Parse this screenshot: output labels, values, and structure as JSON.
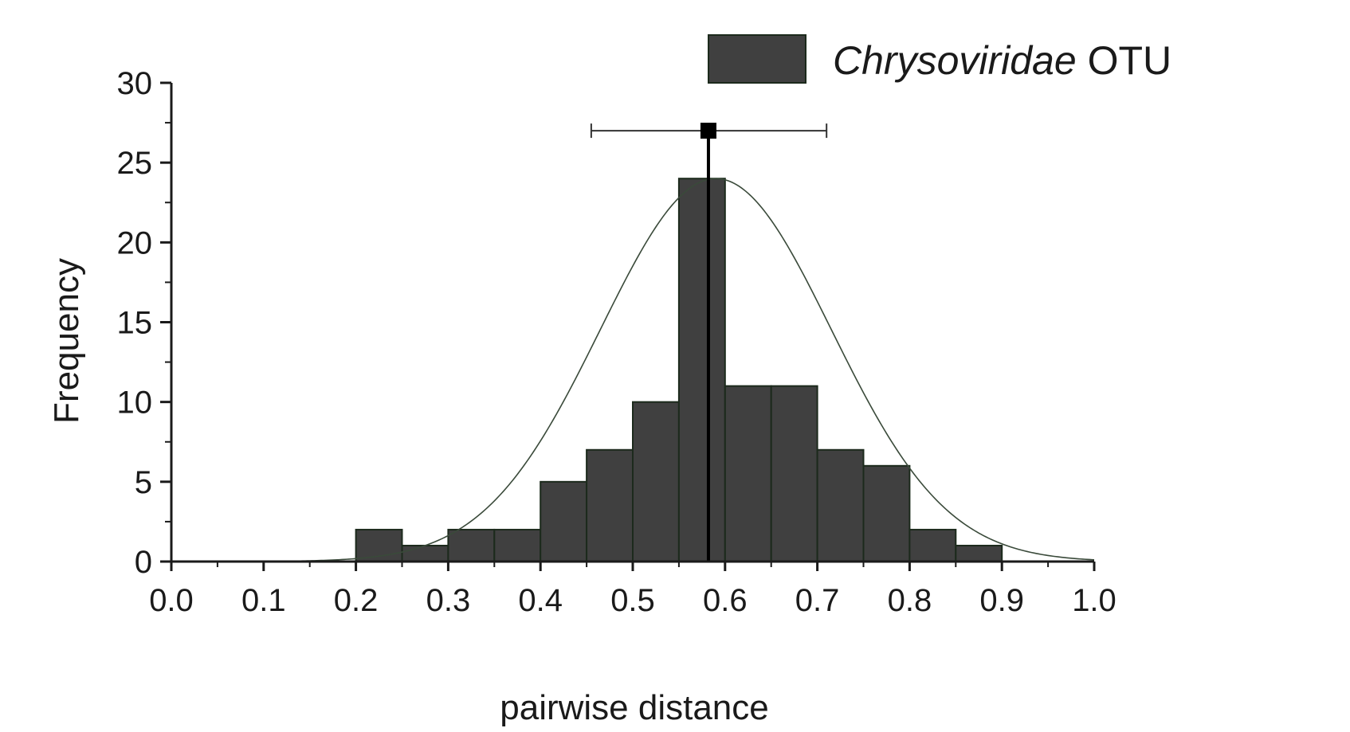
{
  "chart_data": {
    "type": "bar",
    "subtype": "histogram",
    "xlabel": "pairwise distance",
    "ylabel": "Frequency",
    "xlim": [
      0.0,
      1.0
    ],
    "ylim": [
      0,
      30
    ],
    "x_ticks": [
      "0.0",
      "0.1",
      "0.2",
      "0.3",
      "0.4",
      "0.5",
      "0.6",
      "0.7",
      "0.8",
      "0.9",
      "1.0"
    ],
    "y_ticks": [
      "0",
      "5",
      "10",
      "15",
      "20",
      "25",
      "30"
    ],
    "bin_width": 0.05,
    "bins": [
      {
        "start": 0.2,
        "end": 0.25,
        "count": 2
      },
      {
        "start": 0.25,
        "end": 0.3,
        "count": 1
      },
      {
        "start": 0.3,
        "end": 0.35,
        "count": 2
      },
      {
        "start": 0.35,
        "end": 0.4,
        "count": 2
      },
      {
        "start": 0.4,
        "end": 0.45,
        "count": 5
      },
      {
        "start": 0.45,
        "end": 0.5,
        "count": 7
      },
      {
        "start": 0.5,
        "end": 0.55,
        "count": 10
      },
      {
        "start": 0.55,
        "end": 0.6,
        "count": 24
      },
      {
        "start": 0.6,
        "end": 0.65,
        "count": 11
      },
      {
        "start": 0.65,
        "end": 0.7,
        "count": 11
      },
      {
        "start": 0.7,
        "end": 0.75,
        "count": 7
      },
      {
        "start": 0.75,
        "end": 0.8,
        "count": 6
      },
      {
        "start": 0.8,
        "end": 0.85,
        "count": 2
      },
      {
        "start": 0.85,
        "end": 0.9,
        "count": 1
      }
    ],
    "normal_fit": {
      "mean": 0.59,
      "sd": 0.125,
      "peak": 24
    },
    "mean_marker": {
      "x": 0.582,
      "y": 27,
      "error_low": 0.455,
      "error_high": 0.71
    },
    "legend": {
      "placement": "top-right",
      "entries": [
        {
          "italic": "Chrysoviridae",
          "rest": " OTU"
        }
      ]
    },
    "colors": {
      "bar_fill": "#404040",
      "bar_edge": "#1c2a1c",
      "curve": "#3a4a3a",
      "text": "#1a1a1a"
    }
  }
}
